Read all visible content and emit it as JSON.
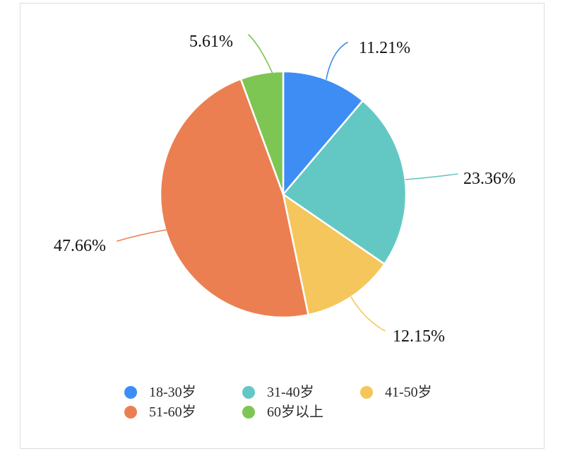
{
  "chart_data": {
    "type": "pie",
    "title": "",
    "legend_position": "bottom",
    "start_angle_deg": 0,
    "direction": "clockwise",
    "label_format": "percent",
    "background": "#ffffff",
    "frame_border_color": "#dcdcdc",
    "slices": [
      {
        "label": "18-30岁",
        "value": 11.21,
        "display": "11.21%",
        "color": "#3E8DF5"
      },
      {
        "label": "31-40岁",
        "value": 23.36,
        "display": "23.36%",
        "color": "#63C8C3"
      },
      {
        "label": "41-50岁",
        "value": 12.15,
        "display": "12.15%",
        "color": "#F5C65B"
      },
      {
        "label": "51-60岁",
        "value": 47.66,
        "display": "47.66%",
        "color": "#EC7F51"
      },
      {
        "label": "60岁以上",
        "value": 5.61,
        "display": "5.61%",
        "color": "#7DC654"
      }
    ]
  }
}
